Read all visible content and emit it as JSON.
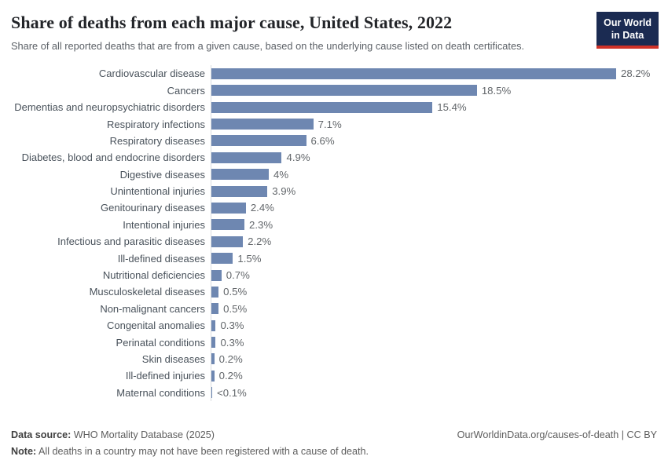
{
  "header": {
    "title": "Share of deaths from each major cause, United States, 2022",
    "subtitle": "Share of all reported deaths that are from a given cause, based on the underlying cause listed on death certificates.",
    "logo": {
      "line1": "Our World",
      "line2": "in Data"
    }
  },
  "chart_data": {
    "type": "bar",
    "orientation": "horizontal",
    "title": "Share of deaths from each major cause, United States, 2022",
    "xlabel": "",
    "ylabel": "",
    "xlim": [
      0,
      28.2
    ],
    "grid": false,
    "legend": false,
    "bar_color": "#6e87b1",
    "categories": [
      "Cardiovascular disease",
      "Cancers",
      "Dementias and neuropsychiatric disorders",
      "Respiratory infections",
      "Respiratory diseases",
      "Diabetes, blood and endocrine disorders",
      "Digestive diseases",
      "Unintentional injuries",
      "Genitourinary diseases",
      "Intentional injuries",
      "Infectious and parasitic diseases",
      "Ill-defined diseases",
      "Nutritional deficiencies",
      "Musculoskeletal diseases",
      "Non-malignant cancers",
      "Congenital anomalies",
      "Perinatal conditions",
      "Skin diseases",
      "Ill-defined injuries",
      "Maternal conditions"
    ],
    "values": [
      28.2,
      18.5,
      15.4,
      7.1,
      6.6,
      4.9,
      4,
      3.9,
      2.4,
      2.3,
      2.2,
      1.5,
      0.7,
      0.5,
      0.5,
      0.3,
      0.3,
      0.2,
      0.2,
      0.05
    ],
    "value_labels": [
      "28.2%",
      "18.5%",
      "15.4%",
      "7.1%",
      "6.6%",
      "4.9%",
      "4%",
      "3.9%",
      "2.4%",
      "2.3%",
      "2.2%",
      "1.5%",
      "0.7%",
      "0.5%",
      "0.5%",
      "0.3%",
      "0.3%",
      "0.2%",
      "0.2%",
      "<0.1%"
    ]
  },
  "footer": {
    "source_label": "Data source:",
    "source_text": " WHO Mortality Database (2025)",
    "note_label": "Note:",
    "note_text": " All deaths in a country may not have been registered with a cause of death.",
    "right_text": "OurWorldinData.org/causes-of-death | CC BY"
  },
  "colors": {
    "bar": "#6e87b1",
    "axis_line": "#d9dde1",
    "category_label": "#49525b",
    "value_label": "#62666a",
    "title": "#222428",
    "subtitle": "#5c6167",
    "logo_bg": "#1b2b52",
    "logo_underline": "#cf3228"
  }
}
